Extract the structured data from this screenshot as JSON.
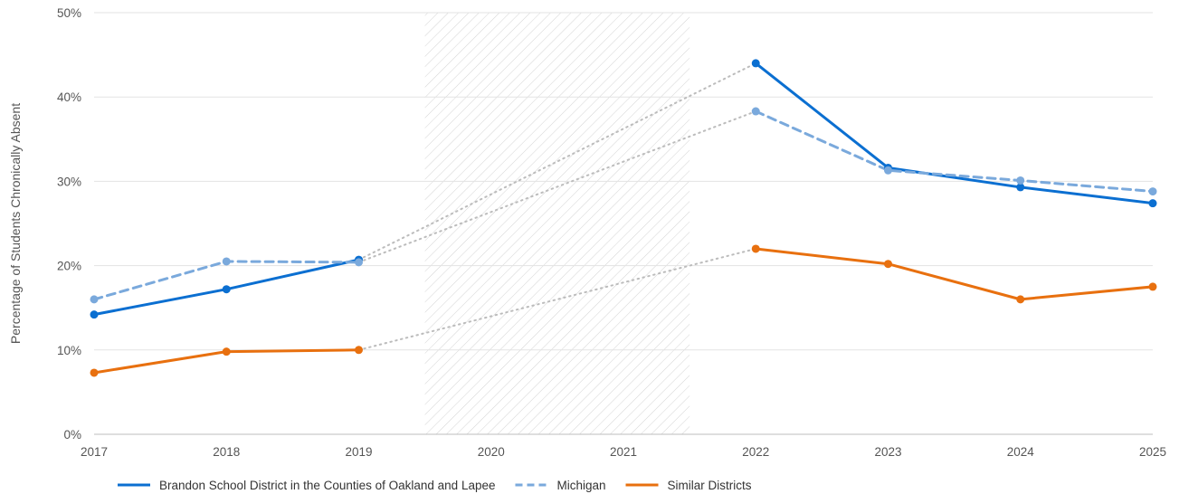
{
  "chart_data": {
    "type": "line",
    "title": "",
    "ylabel": "Percentage of Students Chronically Absent",
    "xlabel": "",
    "x": [
      "2017",
      "2018",
      "2019",
      "2020",
      "2021",
      "2022",
      "2023",
      "2024",
      "2025"
    ],
    "ylim": [
      0,
      50
    ],
    "yticks": [
      0,
      10,
      20,
      30,
      40,
      50
    ],
    "ytick_labels": [
      "0%",
      "10%",
      "20%",
      "30%",
      "40%",
      "50%"
    ],
    "grid": "horizontal",
    "shaded_gap": {
      "from": "2020",
      "to": "2021",
      "pattern": "diagonal hatch"
    },
    "gap_connector": "dotted grey line from 2019 to 2022",
    "legend_position": "bottom-left",
    "series": [
      {
        "name": "Brandon School District in the Counties of Oakland and Lapee",
        "color": "#0b6fd1",
        "style": "solid",
        "values": [
          14.2,
          17.2,
          20.7,
          null,
          null,
          44.0,
          31.6,
          29.3,
          27.4
        ]
      },
      {
        "name": "Michigan",
        "color": "#7aa9dc",
        "style": "dashed",
        "values": [
          16.0,
          20.5,
          20.4,
          null,
          null,
          38.3,
          31.3,
          30.1,
          28.8
        ]
      },
      {
        "name": "Similar Districts",
        "color": "#e8700f",
        "style": "solid",
        "values": [
          7.3,
          9.8,
          10.0,
          null,
          null,
          22.0,
          20.2,
          16.0,
          17.5
        ]
      }
    ]
  }
}
